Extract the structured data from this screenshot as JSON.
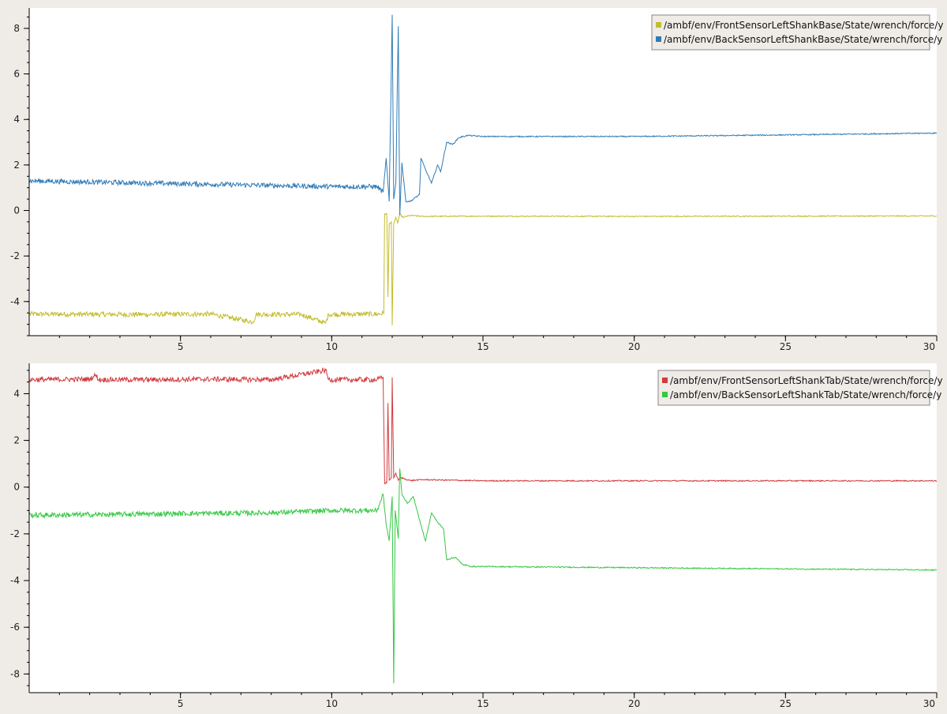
{
  "chart_data": [
    {
      "type": "line",
      "xlim": [
        0,
        30
      ],
      "ylim": [
        -5.5,
        8.9
      ],
      "x_ticks": [
        5,
        10,
        15,
        20,
        25,
        30
      ],
      "y_ticks": [
        -4,
        -2,
        0,
        2,
        4,
        6,
        8
      ],
      "grid": false,
      "legend_position": "top-right",
      "series": [
        {
          "name": "/ambf/env/FrontSensorLeftShankBase/State/wrench/force/y",
          "color": "#c2bd2e",
          "points": [
            [
              0,
              -4.55
            ],
            [
              2,
              -4.56
            ],
            [
              4,
              -4.57
            ],
            [
              6,
              -4.55
            ],
            [
              7.4,
              -4.9
            ],
            [
              7.5,
              -4.56
            ],
            [
              9,
              -4.57
            ],
            [
              9.8,
              -4.95
            ],
            [
              9.9,
              -4.56
            ],
            [
              11.5,
              -4.55
            ],
            [
              11.72,
              -4.52
            ],
            [
              11.75,
              -0.15
            ],
            [
              11.82,
              -0.15
            ],
            [
              11.86,
              -3.8
            ],
            [
              11.9,
              -0.6
            ],
            [
              11.97,
              -0.5
            ],
            [
              12.0,
              -5.05
            ],
            [
              12.05,
              -0.6
            ],
            [
              12.12,
              -0.3
            ],
            [
              12.18,
              -0.55
            ],
            [
              12.25,
              -0.15
            ],
            [
              12.35,
              -0.3
            ],
            [
              12.6,
              -0.22
            ],
            [
              13,
              -0.26
            ],
            [
              15,
              -0.25
            ],
            [
              20,
              -0.26
            ],
            [
              25,
              -0.25
            ],
            [
              30,
              -0.24
            ]
          ]
        },
        {
          "name": "/ambf/env/BackSensorLeftShankBase/State/wrench/force/y",
          "color": "#2f7bb6",
          "points": [
            [
              0,
              1.3
            ],
            [
              2,
              1.25
            ],
            [
              4,
              1.2
            ],
            [
              6,
              1.15
            ],
            [
              8,
              1.1
            ],
            [
              10,
              1.05
            ],
            [
              11.5,
              1.05
            ],
            [
              11.7,
              0.8
            ],
            [
              11.8,
              2.3
            ],
            [
              11.9,
              0.4
            ],
            [
              12.0,
              8.6
            ],
            [
              12.05,
              0.5
            ],
            [
              12.12,
              1.2
            ],
            [
              12.2,
              8.1
            ],
            [
              12.25,
              -0.2
            ],
            [
              12.32,
              2.1
            ],
            [
              12.45,
              0.4
            ],
            [
              12.6,
              0.4
            ],
            [
              12.9,
              0.7
            ],
            [
              12.95,
              2.3
            ],
            [
              13.1,
              1.8
            ],
            [
              13.3,
              1.2
            ],
            [
              13.5,
              2.0
            ],
            [
              13.6,
              1.7
            ],
            [
              13.8,
              3.0
            ],
            [
              14.0,
              2.9
            ],
            [
              14.2,
              3.2
            ],
            [
              14.5,
              3.3
            ],
            [
              15,
              3.25
            ],
            [
              20,
              3.25
            ],
            [
              25,
              3.32
            ],
            [
              30,
              3.4
            ]
          ]
        }
      ]
    },
    {
      "type": "line",
      "xlim": [
        0,
        30
      ],
      "ylim": [
        -8.8,
        5.3
      ],
      "x_ticks": [
        5,
        10,
        15,
        20,
        25,
        30
      ],
      "y_ticks": [
        -8,
        -6,
        -4,
        -2,
        0,
        2,
        4
      ],
      "grid": false,
      "legend_position": "top-right",
      "series": [
        {
          "name": "/ambf/env/FrontSensorLeftShankTab/State/wrench/force/y",
          "color": "#d03a3e",
          "points": [
            [
              0,
              4.6
            ],
            [
              2,
              4.62
            ],
            [
              2.2,
              4.8
            ],
            [
              2.3,
              4.6
            ],
            [
              4,
              4.6
            ],
            [
              6,
              4.62
            ],
            [
              8,
              4.6
            ],
            [
              9.8,
              5.0
            ],
            [
              9.9,
              4.6
            ],
            [
              11.5,
              4.6
            ],
            [
              11.7,
              4.7
            ],
            [
              11.75,
              0.15
            ],
            [
              11.82,
              0.2
            ],
            [
              11.86,
              3.6
            ],
            [
              11.9,
              0.3
            ],
            [
              11.97,
              0.4
            ],
            [
              12.0,
              4.7
            ],
            [
              12.05,
              0.4
            ],
            [
              12.12,
              0.6
            ],
            [
              12.2,
              0.3
            ],
            [
              12.3,
              0.4
            ],
            [
              12.6,
              0.28
            ],
            [
              13,
              0.32
            ],
            [
              15,
              0.27
            ],
            [
              20,
              0.27
            ],
            [
              25,
              0.27
            ],
            [
              30,
              0.27
            ]
          ]
        },
        {
          "name": "/ambf/env/BackSensorLeftShankTab/State/wrench/force/y",
          "color": "#35c843",
          "points": [
            [
              0,
              -1.2
            ],
            [
              2,
              -1.18
            ],
            [
              4,
              -1.15
            ],
            [
              6,
              -1.12
            ],
            [
              8,
              -1.1
            ],
            [
              10,
              -1.0
            ],
            [
              11.5,
              -1.0
            ],
            [
              11.7,
              -0.3
            ],
            [
              11.8,
              -1.6
            ],
            [
              11.9,
              -2.3
            ],
            [
              12.0,
              -0.4
            ],
            [
              12.05,
              -8.4
            ],
            [
              12.1,
              -1.0
            ],
            [
              12.2,
              -2.2
            ],
            [
              12.25,
              0.8
            ],
            [
              12.32,
              -0.3
            ],
            [
              12.5,
              -0.7
            ],
            [
              12.7,
              -0.4
            ],
            [
              12.9,
              -1.4
            ],
            [
              13.1,
              -2.3
            ],
            [
              13.3,
              -1.1
            ],
            [
              13.5,
              -1.5
            ],
            [
              13.7,
              -1.8
            ],
            [
              13.8,
              -3.1
            ],
            [
              14.1,
              -3.0
            ],
            [
              14.3,
              -3.3
            ],
            [
              14.6,
              -3.4
            ],
            [
              15,
              -3.4
            ],
            [
              20,
              -3.45
            ],
            [
              25,
              -3.5
            ],
            [
              30,
              -3.55
            ]
          ]
        }
      ]
    }
  ]
}
